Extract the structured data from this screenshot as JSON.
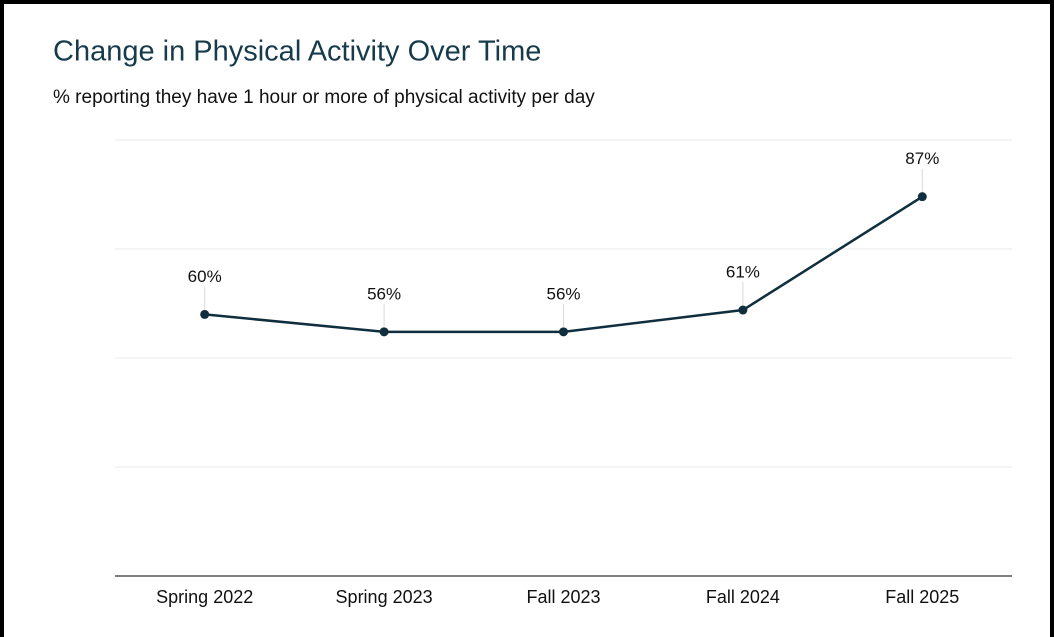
{
  "chart_data": {
    "type": "line",
    "title": "Change in Physical Activity Over Time",
    "subtitle": "% reporting they have 1 hour or more of physical activity per day",
    "categories": [
      "Spring 2022",
      "Spring 2023",
      "Fall 2023",
      "Fall 2024",
      "Fall 2025"
    ],
    "values": [
      60,
      56,
      56,
      61,
      87
    ],
    "value_labels": [
      "60%",
      "56%",
      "56%",
      "61%",
      "87%"
    ],
    "color": "#0f2f3e",
    "ylim": [
      0,
      100
    ],
    "yticks": [
      0,
      25,
      50,
      75,
      100
    ],
    "grid": true
  }
}
